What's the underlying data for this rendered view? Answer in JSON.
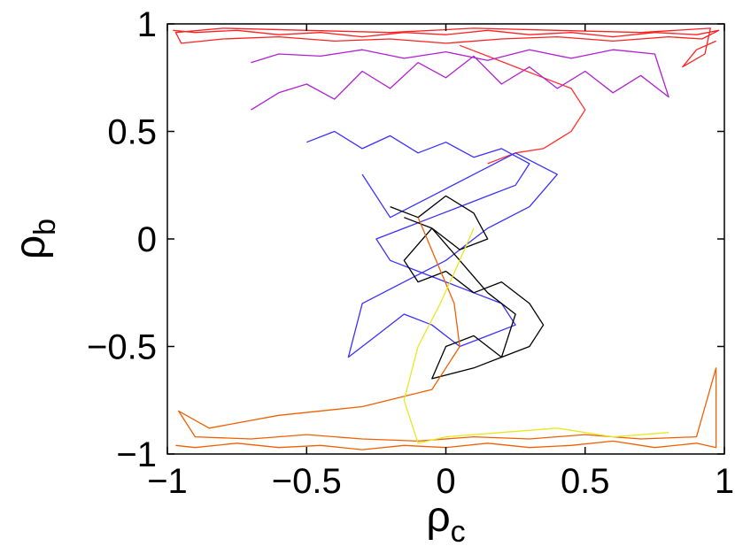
{
  "chart_data": {
    "type": "line",
    "title": "",
    "xlabel": "ρ",
    "xlabel_sub": "c",
    "ylabel": "ρ",
    "ylabel_sub": "b",
    "xlim": [
      -1,
      1
    ],
    "ylim": [
      -1,
      1
    ],
    "xticks": [
      -1,
      -0.5,
      0,
      0.5,
      1
    ],
    "xtick_labels": [
      "−1",
      "−0.5",
      "0",
      "0.5",
      "1"
    ],
    "yticks": [
      -1,
      -0.5,
      0,
      0.5,
      1
    ],
    "ytick_labels": [
      "−1",
      "−0.5",
      "0",
      "0.5",
      "1"
    ],
    "grid": false,
    "legend": "none",
    "series": [
      {
        "color": "#ff2020",
        "x": [
          -0.98,
          -0.9,
          -0.75,
          -0.6,
          -0.45,
          -0.3,
          -0.15,
          0.0,
          0.15,
          0.3,
          0.45,
          0.6,
          0.75,
          0.9,
          0.98,
          0.92,
          0.8,
          0.6,
          0.4,
          0.2,
          0.0,
          -0.2,
          -0.4,
          -0.6,
          -0.8,
          -0.95,
          -0.97,
          -0.8,
          -0.5,
          -0.2,
          0.1,
          0.4,
          0.7,
          0.95,
          0.93,
          0.85,
          0.9,
          0.97
        ],
        "y": [
          0.97,
          0.96,
          0.97,
          0.95,
          0.96,
          0.94,
          0.96,
          0.95,
          0.97,
          0.95,
          0.96,
          0.94,
          0.96,
          0.95,
          0.97,
          0.93,
          0.94,
          0.92,
          0.94,
          0.93,
          0.91,
          0.93,
          0.92,
          0.94,
          0.93,
          0.91,
          0.96,
          0.98,
          0.97,
          0.96,
          0.98,
          0.97,
          0.96,
          0.98,
          0.86,
          0.8,
          0.88,
          0.92
        ]
      },
      {
        "color": "#ff3030",
        "x": [
          0.15,
          0.25,
          0.35,
          0.45,
          0.5,
          0.45,
          0.35,
          0.25,
          0.15,
          0.05
        ],
        "y": [
          0.35,
          0.4,
          0.42,
          0.5,
          0.6,
          0.7,
          0.75,
          0.8,
          0.85,
          0.9
        ]
      },
      {
        "color": "#b020d0",
        "x": [
          -0.7,
          -0.6,
          -0.5,
          -0.4,
          -0.3,
          -0.2,
          -0.1,
          0.0,
          0.1,
          0.2,
          0.3,
          0.4,
          0.5,
          0.6,
          0.7,
          0.8,
          0.75,
          0.6,
          0.45,
          0.3,
          0.15,
          0.0,
          -0.15,
          -0.3,
          -0.45,
          -0.6,
          -0.7
        ],
        "y": [
          0.6,
          0.68,
          0.72,
          0.65,
          0.78,
          0.7,
          0.82,
          0.75,
          0.85,
          0.72,
          0.8,
          0.7,
          0.78,
          0.68,
          0.76,
          0.66,
          0.86,
          0.88,
          0.84,
          0.88,
          0.83,
          0.87,
          0.84,
          0.88,
          0.85,
          0.86,
          0.82
        ]
      },
      {
        "color": "#3a30ff",
        "x": [
          -0.5,
          -0.4,
          -0.3,
          -0.2,
          -0.1,
          0.0,
          0.1,
          0.2,
          0.3,
          0.25,
          0.15,
          0.05,
          -0.05,
          -0.15,
          -0.25,
          -0.2,
          -0.1,
          0.0,
          0.1,
          0.2,
          0.25,
          0.15,
          0.05,
          -0.05,
          -0.15,
          -0.25,
          -0.35,
          -0.3,
          -0.15,
          0.0,
          0.15,
          0.3,
          0.4,
          0.25,
          0.1,
          -0.05,
          -0.2,
          -0.3
        ],
        "y": [
          0.45,
          0.5,
          0.42,
          0.48,
          0.4,
          0.45,
          0.38,
          0.42,
          0.35,
          0.25,
          0.2,
          0.15,
          0.1,
          0.05,
          0.0,
          -0.1,
          -0.15,
          -0.2,
          -0.25,
          -0.3,
          -0.4,
          -0.45,
          -0.5,
          -0.4,
          -0.35,
          -0.45,
          -0.55,
          -0.3,
          -0.2,
          -0.1,
          0.05,
          0.15,
          0.3,
          0.4,
          0.3,
          0.2,
          0.1,
          0.3
        ]
      },
      {
        "color": "#000000",
        "x": [
          -0.2,
          -0.1,
          0.0,
          0.1,
          0.15,
          0.05,
          -0.05,
          -0.15,
          -0.1,
          0.0,
          0.1,
          0.2,
          0.3,
          0.35,
          0.3,
          0.2,
          0.1,
          -0.05,
          0.0,
          0.1,
          0.2,
          0.25,
          0.15,
          0.05,
          -0.05,
          -0.15
        ],
        "y": [
          0.15,
          0.1,
          0.2,
          0.12,
          0.0,
          -0.05,
          0.05,
          -0.1,
          -0.2,
          -0.15,
          -0.25,
          -0.2,
          -0.3,
          -0.4,
          -0.5,
          -0.55,
          -0.6,
          -0.65,
          -0.5,
          -0.45,
          -0.55,
          -0.35,
          -0.25,
          -0.1,
          0.05,
          0.1
        ]
      },
      {
        "color": "#f06000",
        "x": [
          -0.97,
          -0.9,
          -0.75,
          -0.6,
          -0.45,
          -0.3,
          -0.15,
          0.0,
          0.15,
          0.3,
          0.45,
          0.6,
          0.75,
          0.9,
          0.97,
          0.97,
          0.9,
          0.7,
          0.5,
          0.3,
          0.1,
          -0.1,
          -0.3,
          -0.5,
          -0.7,
          -0.9,
          -0.96,
          -0.85,
          -0.6,
          -0.3,
          -0.05,
          0.05,
          0.03,
          -0.1
        ],
        "y": [
          -0.96,
          -0.97,
          -0.95,
          -0.97,
          -0.96,
          -0.98,
          -0.96,
          -0.97,
          -0.95,
          -0.97,
          -0.96,
          -0.94,
          -0.97,
          -0.95,
          -0.97,
          -0.6,
          -0.92,
          -0.93,
          -0.91,
          -0.93,
          -0.92,
          -0.94,
          -0.93,
          -0.91,
          -0.93,
          -0.92,
          -0.8,
          -0.88,
          -0.82,
          -0.78,
          -0.7,
          -0.5,
          -0.3,
          0.1
        ]
      },
      {
        "color": "#e8e820",
        "x": [
          0.1,
          0.05,
          -0.02,
          -0.1,
          -0.15,
          -0.1,
          0.0,
          0.2,
          0.4,
          0.6,
          0.8
        ],
        "y": [
          0.05,
          -0.1,
          -0.3,
          -0.5,
          -0.75,
          -0.95,
          -0.92,
          -0.9,
          -0.88,
          -0.92,
          -0.9
        ]
      }
    ]
  }
}
